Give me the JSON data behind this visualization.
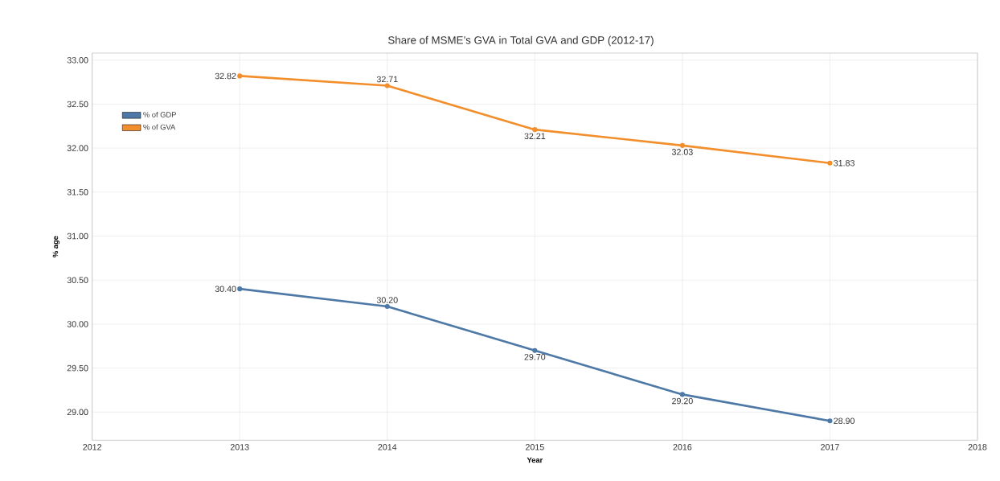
{
  "chart_data": {
    "type": "line",
    "title": "Share of MSME’s GVA in Total GVA and GDP (2012-17)",
    "xlabel": "Year",
    "ylabel": "% age",
    "x": [
      2013,
      2014,
      2015,
      2016,
      2017
    ],
    "series": [
      {
        "name": "% of GDP",
        "color": "#4e79a7",
        "values": [
          30.4,
          30.2,
          29.7,
          29.2,
          28.9
        ],
        "value_labels": [
          "30.40",
          "30.20",
          "29.70",
          "29.20",
          "28.90"
        ]
      },
      {
        "name": "% of GVA",
        "color": "#f28e2b",
        "values": [
          32.82,
          32.71,
          32.21,
          32.03,
          31.83
        ],
        "value_labels": [
          "32.82",
          "32.71",
          "32.21",
          "32.03",
          "31.83"
        ]
      }
    ],
    "xlim": [
      2012,
      2018
    ],
    "xticks": [
      2012,
      2013,
      2014,
      2015,
      2016,
      2017,
      2018
    ],
    "ylim": [
      28.68,
      33.08
    ],
    "yticks": [
      {
        "value": 29,
        "label": "29.00"
      },
      {
        "value": 29.5,
        "label": "29.50"
      },
      {
        "value": 30,
        "label": "30.00"
      },
      {
        "value": 30.5,
        "label": "30.50"
      },
      {
        "value": 31,
        "label": "31.00"
      },
      {
        "value": 31.5,
        "label": "31.50"
      },
      {
        "value": 32,
        "label": "32.00"
      },
      {
        "value": 32.5,
        "label": "32.50"
      },
      {
        "value": 33,
        "label": "33.00"
      }
    ],
    "grid": true,
    "legend": "top left",
    "marker": "circle",
    "line_style": "solid"
  }
}
